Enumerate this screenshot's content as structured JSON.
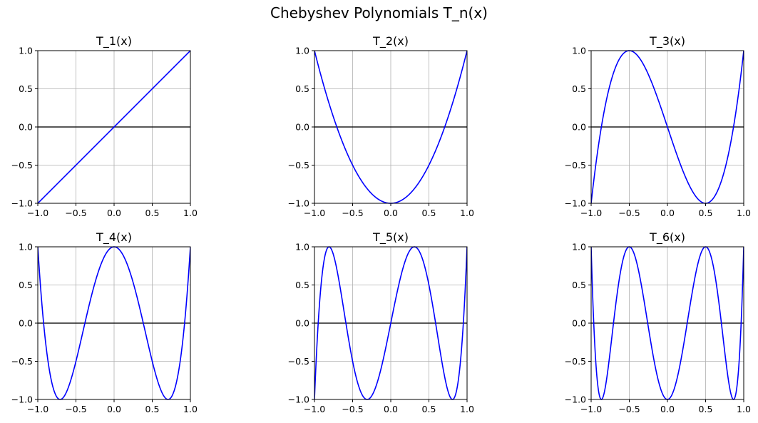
{
  "figure": {
    "title": "Chebyshev Polynomials T_n(x)"
  },
  "colors": {
    "line": "#0000ff",
    "zero_line": "#000000",
    "grid": "#b0b0b0",
    "spine": "#000000"
  },
  "chart_data": [
    {
      "type": "line",
      "title": "T_1(x)",
      "degree": 1,
      "xlim": [
        -1,
        1
      ],
      "ylim": [
        -1,
        1
      ],
      "xticks": [
        -1.0,
        -0.5,
        0.0,
        0.5,
        1.0
      ],
      "yticks": [
        -1.0,
        -0.5,
        0.0,
        0.5,
        1.0
      ],
      "xtick_labels": [
        "−1.0",
        "−0.5",
        "0.0",
        "0.5",
        "1.0"
      ],
      "ytick_labels": [
        "−1.0",
        "−0.5",
        "0.0",
        "0.5",
        "1.0"
      ],
      "grid": true,
      "zero_line": true
    },
    {
      "type": "line",
      "title": "T_2(x)",
      "degree": 2,
      "xlim": [
        -1,
        1
      ],
      "ylim": [
        -1,
        1
      ],
      "xticks": [
        -1.0,
        -0.5,
        0.0,
        0.5,
        1.0
      ],
      "yticks": [
        -1.0,
        -0.5,
        0.0,
        0.5,
        1.0
      ],
      "xtick_labels": [
        "−1.0",
        "−0.5",
        "0.0",
        "0.5",
        "1.0"
      ],
      "ytick_labels": [
        "−1.0",
        "−0.5",
        "0.0",
        "0.5",
        "1.0"
      ],
      "grid": true,
      "zero_line": true
    },
    {
      "type": "line",
      "title": "T_3(x)",
      "degree": 3,
      "xlim": [
        -1,
        1
      ],
      "ylim": [
        -1,
        1
      ],
      "xticks": [
        -1.0,
        -0.5,
        0.0,
        0.5,
        1.0
      ],
      "yticks": [
        -1.0,
        -0.5,
        0.0,
        0.5,
        1.0
      ],
      "xtick_labels": [
        "−1.0",
        "−0.5",
        "0.0",
        "0.5",
        "1.0"
      ],
      "ytick_labels": [
        "−1.0",
        "−0.5",
        "0.0",
        "0.5",
        "1.0"
      ],
      "grid": true,
      "zero_line": true
    },
    {
      "type": "line",
      "title": "T_4(x)",
      "degree": 4,
      "xlim": [
        -1,
        1
      ],
      "ylim": [
        -1,
        1
      ],
      "xticks": [
        -1.0,
        -0.5,
        0.0,
        0.5,
        1.0
      ],
      "yticks": [
        -1.0,
        -0.5,
        0.0,
        0.5,
        1.0
      ],
      "xtick_labels": [
        "−1.0",
        "−0.5",
        "0.0",
        "0.5",
        "1.0"
      ],
      "ytick_labels": [
        "−1.0",
        "−0.5",
        "0.0",
        "0.5",
        "1.0"
      ],
      "grid": true,
      "zero_line": true
    },
    {
      "type": "line",
      "title": "T_5(x)",
      "degree": 5,
      "xlim": [
        -1,
        1
      ],
      "ylim": [
        -1,
        1
      ],
      "xticks": [
        -1.0,
        -0.5,
        0.0,
        0.5,
        1.0
      ],
      "yticks": [
        -1.0,
        -0.5,
        0.0,
        0.5,
        1.0
      ],
      "xtick_labels": [
        "−1.0",
        "−0.5",
        "0.0",
        "0.5",
        "1.0"
      ],
      "ytick_labels": [
        "−1.0",
        "−0.5",
        "0.0",
        "0.5",
        "1.0"
      ],
      "grid": true,
      "zero_line": true
    },
    {
      "type": "line",
      "title": "T_6(x)",
      "degree": 6,
      "xlim": [
        -1,
        1
      ],
      "ylim": [
        -1,
        1
      ],
      "xticks": [
        -1.0,
        -0.5,
        0.0,
        0.5,
        1.0
      ],
      "yticks": [
        -1.0,
        -0.5,
        0.0,
        0.5,
        1.0
      ],
      "xtick_labels": [
        "−1.0",
        "−0.5",
        "0.0",
        "0.5",
        "1.0"
      ],
      "ytick_labels": [
        "−1.0",
        "−0.5",
        "0.0",
        "0.5",
        "1.0"
      ],
      "grid": true,
      "zero_line": true
    }
  ]
}
